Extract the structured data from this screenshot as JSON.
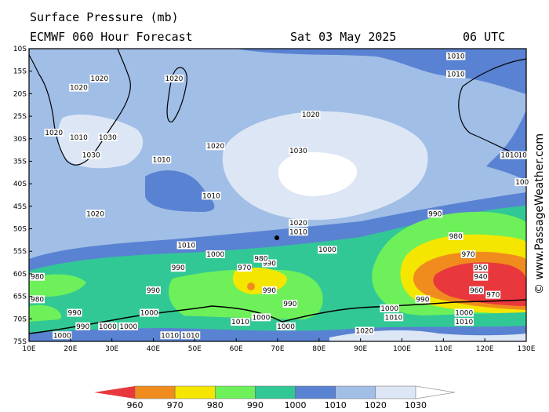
{
  "title": {
    "line1": "Surface Pressure (mb)",
    "model": "ECMWF 060 Hour Forecast",
    "date": "Sat 03 May 2025",
    "time": "06 UTC"
  },
  "credit": "© www.PassageWeather.com",
  "axes": {
    "lat_labels": [
      "10S",
      "15S",
      "20S",
      "25S",
      "30S",
      "35S",
      "40S",
      "45S",
      "50S",
      "55S",
      "60S",
      "65S",
      "70S",
      "75S"
    ],
    "lon_labels": [
      "10E",
      "20E",
      "30E",
      "40E",
      "50E",
      "60E",
      "70E",
      "80E",
      "90E",
      "100E",
      "110E",
      "120E",
      "130E"
    ]
  },
  "colorbar": {
    "levels": [
      "960",
      "970",
      "980",
      "990",
      "1000",
      "1010",
      "1020",
      "1030"
    ],
    "colors": [
      "#e8383d",
      "#f08c1e",
      "#f5e600",
      "#6ef05a",
      "#32c896",
      "#5a82d2",
      "#a0bee6",
      "#dce6f5"
    ]
  },
  "contour_labels": [
    {
      "text": "1020",
      "lon": 22,
      "lat": -19
    },
    {
      "text": "1020",
      "lon": 27,
      "lat": -17
    },
    {
      "text": "1020",
      "lon": 45,
      "lat": -17
    },
    {
      "text": "1020",
      "lon": 16,
      "lat": -29
    },
    {
      "text": "1010",
      "lon": 22,
      "lat": -30
    },
    {
      "text": "1030",
      "lon": 29,
      "lat": -30
    },
    {
      "text": "1030",
      "lon": 25,
      "lat": -34
    },
    {
      "text": "1010",
      "lon": 113,
      "lat": -16
    },
    {
      "text": "1020",
      "lon": 78,
      "lat": -25
    },
    {
      "text": "1020",
      "lon": 55,
      "lat": -32
    },
    {
      "text": "1030",
      "lon": 75,
      "lat": -33
    },
    {
      "text": "1010",
      "lon": 42,
      "lat": -35
    },
    {
      "text": "1010",
      "lon": 54,
      "lat": -43
    },
    {
      "text": "1020",
      "lon": 26,
      "lat": -47
    },
    {
      "text": "1020",
      "lon": 75,
      "lat": -49
    },
    {
      "text": "1010",
      "lon": 75,
      "lat": -51
    },
    {
      "text": "1010",
      "lon": 48,
      "lat": -54
    },
    {
      "text": "1000",
      "lon": 55,
      "lat": -56
    },
    {
      "text": "1000",
      "lon": 82,
      "lat": -55
    },
    {
      "text": "990",
      "lon": 108,
      "lat": -47
    },
    {
      "text": "980",
      "lon": 113,
      "lat": -52
    },
    {
      "text": "970",
      "lon": 116,
      "lat": -56
    },
    {
      "text": "950",
      "lon": 119,
      "lat": -59
    },
    {
      "text": "940",
      "lon": 119,
      "lat": -61
    },
    {
      "text": "960",
      "lon": 118,
      "lat": -64
    },
    {
      "text": "970",
      "lon": 122,
      "lat": -65
    },
    {
      "text": "990",
      "lon": 68,
      "lat": -58
    },
    {
      "text": "980",
      "lon": 66,
      "lat": -57
    },
    {
      "text": "970",
      "lon": 62,
      "lat": -59
    },
    {
      "text": "990",
      "lon": 46,
      "lat": -59
    },
    {
      "text": "980",
      "lon": 12,
      "lat": -61
    },
    {
      "text": "980",
      "lon": 12,
      "lat": -66
    },
    {
      "text": "990",
      "lon": 40,
      "lat": -64
    },
    {
      "text": "990",
      "lon": 68,
      "lat": -64
    },
    {
      "text": "990",
      "lon": 73,
      "lat": -67
    },
    {
      "text": "990",
      "lon": 105,
      "lat": -66
    },
    {
      "text": "1000",
      "lon": 97,
      "lat": -68
    },
    {
      "text": "1000",
      "lon": 115,
      "lat": -69
    },
    {
      "text": "990",
      "lon": 21,
      "lat": -69
    },
    {
      "text": "1000",
      "lon": 39,
      "lat": -69
    },
    {
      "text": "990",
      "lon": 23,
      "lat": -72
    },
    {
      "text": "1000",
      "lon": 29,
      "lat": -72
    },
    {
      "text": "1000",
      "lon": 34,
      "lat": -72
    },
    {
      "text": "1010",
      "lon": 98,
      "lat": -70
    },
    {
      "text": "1000",
      "lon": 66,
      "lat": -70
    },
    {
      "text": "1010",
      "lon": 61,
      "lat": -71
    },
    {
      "text": "1010",
      "lon": 115,
      "lat": -71
    },
    {
      "text": "1000",
      "lon": 72,
      "lat": -72
    },
    {
      "text": "1020",
      "lon": 91,
      "lat": -73
    },
    {
      "text": "1000",
      "lon": 18,
      "lat": -74
    },
    {
      "text": "1010",
      "lon": 49,
      "lat": -74
    },
    {
      "text": "1010",
      "lon": 44,
      "lat": -74
    },
    {
      "text": "1010",
      "lon": 113,
      "lat": -12
    },
    {
      "text": "1010",
      "lon": 128,
      "lat": -34
    },
    {
      "text": "1010",
      "lon": 126,
      "lat": -34
    },
    {
      "text": "100",
      "lon": 129,
      "lat": -40
    }
  ]
}
